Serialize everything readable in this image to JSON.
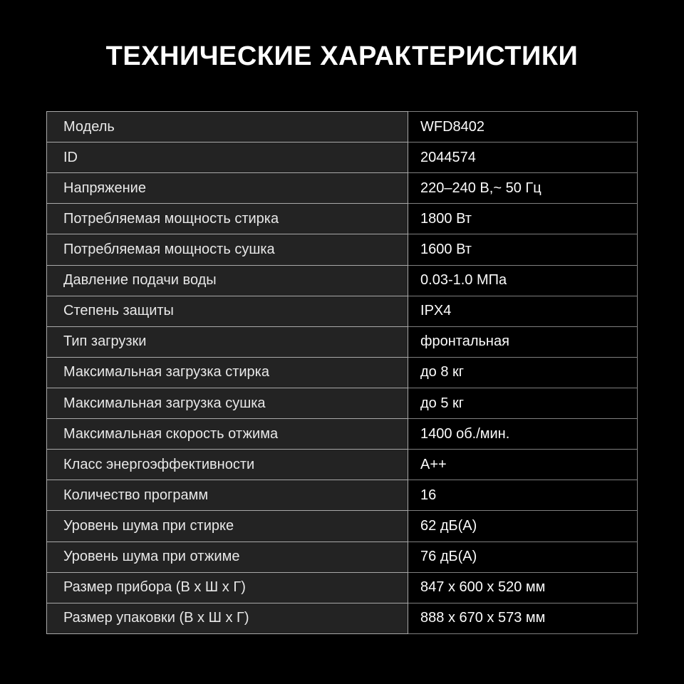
{
  "title": "ТЕХНИЧЕСКИЕ ХАРАКТЕРИСТИКИ",
  "colors": {
    "background": "#000000",
    "title_text": "#ffffff",
    "label_cell_bg": "#232323",
    "value_cell_bg": "#000000",
    "label_border": "#a9a9a9",
    "value_border": "#7f7f7f",
    "label_text": "#e8e8e8",
    "value_text": "#fcfcfc"
  },
  "table": {
    "rows": [
      {
        "label": "Модель",
        "value": "WFD8402"
      },
      {
        "label": "ID",
        "value": "2044574"
      },
      {
        "label": "Напряжение",
        "value": "220–240 В,~ 50 Гц"
      },
      {
        "label": "Потребляемая мощность стирка",
        "value": "1800 Вт"
      },
      {
        "label": "Потребляемая мощность сушка",
        "value": "1600 Вт"
      },
      {
        "label": "Давление подачи воды",
        "value": "0.03-1.0 МПа"
      },
      {
        "label": "Степень защиты",
        "value": "IPX4"
      },
      {
        "label": "Тип загрузки",
        "value": "фронтальная"
      },
      {
        "label": "Максимальная загрузка стирка",
        "value": "до 8 кг"
      },
      {
        "label": "Максимальная загрузка сушка",
        "value": "до 5 кг"
      },
      {
        "label": "Максимальная скорость отжима",
        "value": "1400 об./мин."
      },
      {
        "label": "Класс энергоэффективности",
        "value": "А++"
      },
      {
        "label": "Количество программ",
        "value": "16"
      },
      {
        "label": "Уровень шума при стирке",
        "value": "62 дБ(А)"
      },
      {
        "label": "Уровень шума при отжиме",
        "value": "76 дБ(А)"
      },
      {
        "label": "Размер прибора (В х Ш х Г)",
        "value": "847 х 600 х 520 мм"
      },
      {
        "label": "Размер упаковки (В х Ш х Г)",
        "value": "888 х 670 х 573 мм"
      }
    ]
  }
}
